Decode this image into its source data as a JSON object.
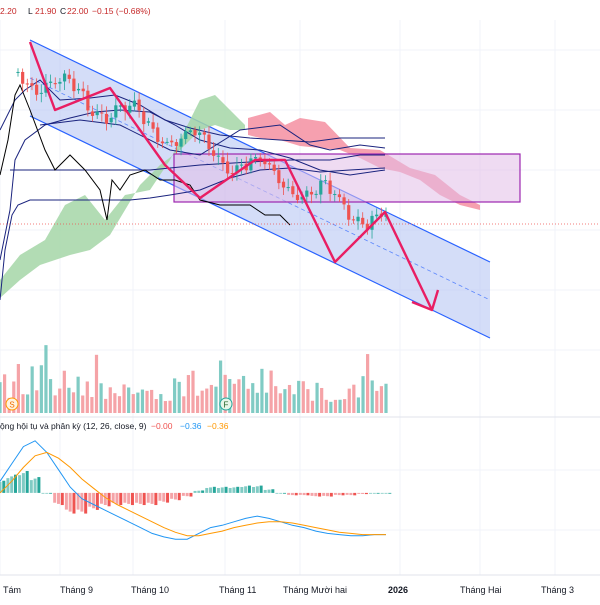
{
  "ohlc_header": {
    "open_partial": "2.20",
    "low_label": "L",
    "low_value": "21.90",
    "close_label": "C",
    "close_value": "22.00",
    "change": "−0.15 (−0.68%)"
  },
  "macd_header": {
    "title": "ộng hội tụ và phân kỳ (12, 26, close, 9)",
    "histogram": "−0.00",
    "macd": "−0.36",
    "signal": "−0.36"
  },
  "events": [
    {
      "label": "S"
    },
    {
      "label": "F"
    }
  ],
  "x_ticks": [
    {
      "label": "Tám",
      "bold": false
    },
    {
      "label": "Tháng 9",
      "bold": false
    },
    {
      "label": "Tháng 10",
      "bold": false
    },
    {
      "label": "Tháng 11",
      "bold": false
    },
    {
      "label": "Tháng Mười hai",
      "bold": false
    },
    {
      "label": "2026",
      "bold": true
    },
    {
      "label": "Tháng Hai",
      "bold": false
    },
    {
      "label": "Tháng 3",
      "bold": false
    }
  ],
  "colors": {
    "up": "#26a69a",
    "down": "#ef5350",
    "up_volume": "#80cbc4",
    "down_volume": "#f5a3a7",
    "channel_fill": "#b7c7f3",
    "channel_line": "#2962ff",
    "cloud_bull": "#a5d6a7",
    "cloud_bear": "#f48fa1",
    "zone_fill": "#e1bee7",
    "zone_stroke": "#9c27b0",
    "projection": "#e91e63",
    "ichimoku_line": "#1a237e",
    "lagging_span": "#000000",
    "macd_line": "#2196f3",
    "signal_line": "#ff9800"
  },
  "chart_data": {
    "type": "candlestick",
    "notes": "Price panel values are relative price levels estimated from the picture (no price axis visible).",
    "price_path": [
      23.6,
      23.4,
      23.2,
      23.3,
      23.0,
      22.7,
      22.8,
      22.6,
      22.9,
      22.5,
      22.3,
      22.4,
      22.6,
      22.2,
      22.0,
      22.3,
      22.1,
      21.9,
      22.2,
      22.5,
      22.3,
      22.4,
      22.6,
      22.5,
      22.7,
      22.6,
      22.4,
      22.3,
      22.1,
      22.2,
      22.0,
      21.9,
      22.1,
      22.0,
      21.8,
      21.9,
      22.0,
      22.0
    ],
    "volume_relative": [
      0.45,
      0.6,
      0.35,
      0.5,
      0.7,
      0.4,
      0.3,
      0.55,
      0.45,
      0.6,
      0.85,
      0.5,
      0.4,
      0.35,
      0.6,
      0.45,
      0.3,
      0.5,
      0.4,
      0.65,
      0.35,
      0.9,
      0.45,
      0.3,
      0.55,
      0.4,
      0.35,
      0.6,
      0.45,
      0.3,
      0.25,
      0.4,
      0.35,
      0.3,
      0.2,
      0.3,
      0.25,
      0.2
    ],
    "macd_line": [
      0.1,
      0.25,
      0.4,
      0.45,
      0.35,
      0.2,
      0.05,
      -0.05,
      -0.1,
      -0.15,
      -0.2,
      -0.25,
      -0.3,
      -0.35,
      -0.38,
      -0.4,
      -0.4,
      -0.35,
      -0.3,
      -0.28,
      -0.25,
      -0.22,
      -0.2,
      -0.22,
      -0.25,
      -0.28,
      -0.3,
      -0.33,
      -0.35,
      -0.36,
      -0.37,
      -0.37,
      -0.36,
      -0.36
    ],
    "signal_line": [
      0.0,
      0.1,
      0.22,
      0.32,
      0.35,
      0.3,
      0.22,
      0.12,
      0.04,
      -0.04,
      -0.1,
      -0.15,
      -0.2,
      -0.25,
      -0.3,
      -0.34,
      -0.37,
      -0.37,
      -0.35,
      -0.33,
      -0.3,
      -0.28,
      -0.26,
      -0.25,
      -0.25,
      -0.26,
      -0.28,
      -0.3,
      -0.32,
      -0.34,
      -0.35,
      -0.36,
      -0.36,
      -0.36
    ],
    "macd_histogram": [
      0.1,
      0.15,
      0.18,
      0.13,
      0.0,
      -0.1,
      -0.17,
      -0.17,
      -0.14,
      -0.11,
      -0.1,
      -0.1,
      -0.1,
      -0.1,
      -0.08,
      -0.06,
      -0.03,
      0.02,
      0.05,
      0.05,
      0.05,
      0.06,
      0.06,
      0.03,
      0.0,
      -0.02,
      -0.02,
      -0.03,
      -0.03,
      -0.02,
      -0.02,
      -0.01,
      0.0,
      0.0
    ],
    "legend": "none",
    "grid": true
  }
}
